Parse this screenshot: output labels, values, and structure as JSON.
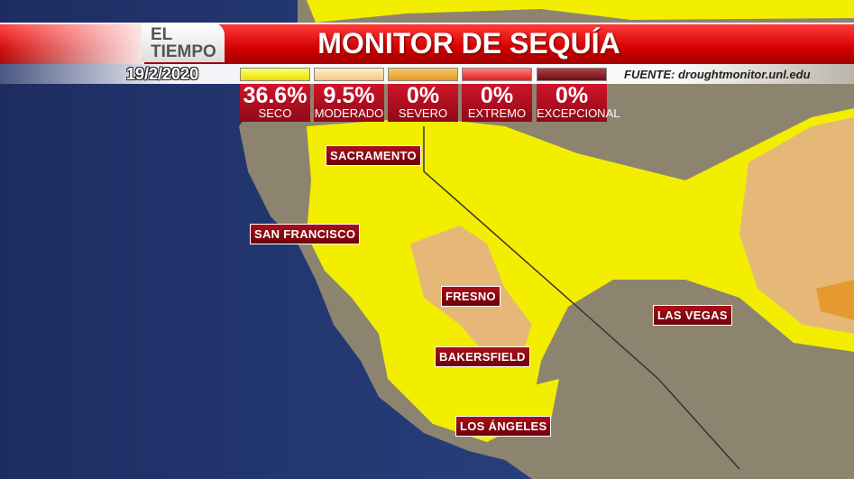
{
  "brand": {
    "line1": "EL",
    "line2": "TIEMPO"
  },
  "title": "MONITOR DE SEQUÍA",
  "date": "19/2/2020",
  "source": "FUENTE: droughtmonitor.unl.edu",
  "legend": [
    {
      "percent": "36.6%",
      "label": "SECO",
      "color": "#f5f000"
    },
    {
      "percent": "9.5%",
      "label": "MODERADO",
      "color": "#f7d9a0"
    },
    {
      "percent": "0%",
      "label": "SEVERO",
      "color": "#f0a830"
    },
    {
      "percent": "0%",
      "label": "EXTREMO",
      "color": "#e83030"
    },
    {
      "percent": "0%",
      "label": "EXCEPCIONAL",
      "color": "#7a1418"
    }
  ],
  "cities": [
    "SACRAMENTO",
    "SAN FRANCISCO",
    "FRESNO",
    "LAS VEGAS",
    "BAKERSFIELD",
    "LOS ÁNGELES"
  ],
  "colors": {
    "ocean": "#24356e",
    "land": "#8a8070",
    "dry": "#f5f000",
    "moderate": "#e8b878"
  }
}
